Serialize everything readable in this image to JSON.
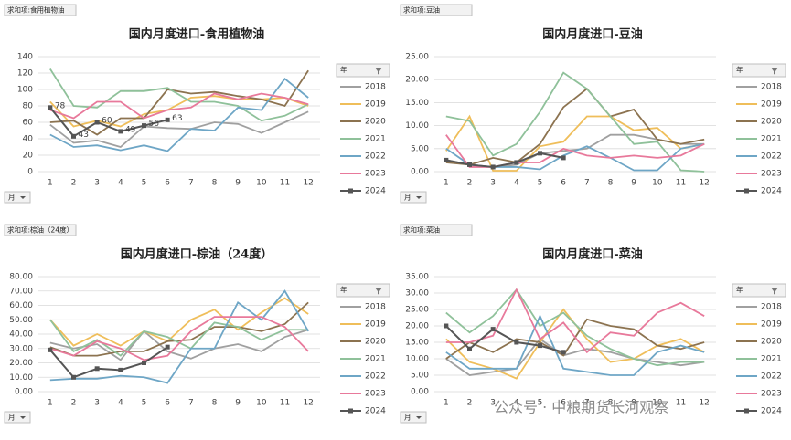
{
  "watermark": "公众号 · 中粮期货长河观察",
  "chart_data": [
    {
      "type": "line",
      "field_button": "求和项:食用植物油",
      "title": "国内月度进口-食用植物油",
      "legend_title": "年",
      "x_label": "月",
      "categories": [
        "1",
        "2",
        "3",
        "4",
        "5",
        "6",
        "7",
        "8",
        "9",
        "10",
        "11",
        "12"
      ],
      "ylim": [
        0,
        140
      ],
      "yticks": [
        0,
        20,
        40,
        60,
        80,
        100,
        120,
        140
      ],
      "series": [
        {
          "name": "2018",
          "color": "#a0a0a0",
          "values": [
            57,
            35,
            38,
            30,
            55,
            53,
            52,
            60,
            58,
            47,
            60,
            73
          ]
        },
        {
          "name": "2019",
          "color": "#efbe5a",
          "values": [
            85,
            55,
            62,
            55,
            70,
            75,
            90,
            92,
            88,
            88,
            90,
            80
          ]
        },
        {
          "name": "2020",
          "color": "#8c7350",
          "values": [
            60,
            62,
            45,
            65,
            65,
            100,
            95,
            97,
            92,
            88,
            80,
            123
          ]
        },
        {
          "name": "2021",
          "color": "#8fc19a",
          "values": [
            125,
            80,
            78,
            98,
            98,
            102,
            85,
            85,
            80,
            62,
            68,
            82
          ]
        },
        {
          "name": "2022",
          "color": "#6ea6c6",
          "values": [
            45,
            30,
            32,
            26,
            32,
            25,
            52,
            50,
            78,
            75,
            113,
            90
          ]
        },
        {
          "name": "2023",
          "color": "#e8799b",
          "values": [
            75,
            65,
            85,
            85,
            65,
            75,
            78,
            95,
            88,
            95,
            90,
            82
          ]
        },
        {
          "name": "2024",
          "color": "#555555",
          "marker": "square",
          "data_labels": true,
          "values": [
            78,
            43,
            60,
            49,
            56,
            63,
            null,
            null,
            null,
            null,
            null,
            null
          ]
        }
      ]
    },
    {
      "type": "line",
      "field_button": "求和项:豆油",
      "title": "国内月度进口-豆油",
      "legend_title": "年",
      "x_label": "月",
      "categories": [
        "1",
        "2",
        "3",
        "4",
        "5",
        "6",
        "7",
        "8",
        "9",
        "10",
        "11",
        "12"
      ],
      "ylim": [
        0,
        25
      ],
      "yticks": [
        {
          "value": 0,
          "label": "0.00"
        },
        {
          "value": 5,
          "label": "5.00"
        },
        {
          "value": 10,
          "label": "10.00"
        },
        {
          "value": 15,
          "label": "15.00"
        },
        {
          "value": 20,
          "label": "20.00"
        },
        {
          "value": 25,
          "label": "25.00"
        }
      ],
      "series": [
        {
          "name": "2018",
          "color": "#a0a0a0",
          "values": [
            2.5,
            1.5,
            1,
            1.5,
            4,
            4.5,
            5,
            8,
            8,
            7,
            6,
            6
          ]
        },
        {
          "name": "2019",
          "color": "#efbe5a",
          "values": [
            4.5,
            12,
            0.2,
            0.2,
            5.5,
            6.5,
            12,
            12,
            9,
            9.5,
            5,
            6
          ]
        },
        {
          "name": "2020",
          "color": "#8c7350",
          "values": [
            2,
            1.5,
            3,
            2,
            6,
            14,
            18,
            12,
            13.5,
            7,
            6,
            7
          ]
        },
        {
          "name": "2021",
          "color": "#8fc19a",
          "values": [
            12,
            11,
            3.5,
            6,
            13,
            21.5,
            18,
            12,
            6,
            6.5,
            0.3,
            0
          ]
        },
        {
          "name": "2022",
          "color": "#6ea6c6",
          "values": [
            5,
            1.5,
            1,
            1,
            0.5,
            3.5,
            5.5,
            3,
            0.3,
            0.3,
            5,
            6
          ]
        },
        {
          "name": "2023",
          "color": "#e8799b",
          "values": [
            8,
            1,
            1,
            2,
            2,
            5,
            3.5,
            3,
            3.5,
            3,
            3.5,
            6
          ]
        },
        {
          "name": "2024",
          "color": "#555555",
          "marker": "square",
          "values": [
            2.5,
            1.5,
            1,
            2,
            4,
            3,
            null,
            null,
            null,
            null,
            null,
            null
          ]
        }
      ]
    },
    {
      "type": "line",
      "field_button": "求和项:棕油（24度）",
      "title": "国内月度进口-棕油（24度）",
      "legend_title": "年",
      "x_label": "月",
      "categories": [
        "1",
        "2",
        "3",
        "4",
        "5",
        "6",
        "7",
        "8",
        "9",
        "10",
        "11",
        "12"
      ],
      "ylim": [
        0,
        80
      ],
      "yticks": [
        {
          "value": 0,
          "label": "0.00"
        },
        {
          "value": 10,
          "label": "10.00"
        },
        {
          "value": 20,
          "label": "20.00"
        },
        {
          "value": 30,
          "label": "30.00"
        },
        {
          "value": 40,
          "label": "40.00"
        },
        {
          "value": 50,
          "label": "50.00"
        },
        {
          "value": 60,
          "label": "60.00"
        },
        {
          "value": 70,
          "label": "70.00"
        },
        {
          "value": 80,
          "label": "80.00"
        }
      ],
      "series": [
        {
          "name": "2018",
          "color": "#a0a0a0",
          "values": [
            34,
            30,
            33,
            22,
            42,
            28,
            23,
            30,
            33,
            28,
            38,
            43
          ]
        },
        {
          "name": "2019",
          "color": "#efbe5a",
          "values": [
            50,
            32,
            40,
            32,
            42,
            35,
            50,
            57,
            43,
            55,
            65,
            54
          ]
        },
        {
          "name": "2020",
          "color": "#8c7350",
          "values": [
            31,
            25,
            25,
            28,
            28,
            35,
            36,
            45,
            45,
            42,
            47,
            62
          ]
        },
        {
          "name": "2021",
          "color": "#8fc19a",
          "values": [
            50,
            28,
            36,
            25,
            42,
            38,
            30,
            48,
            45,
            36,
            43,
            43
          ]
        },
        {
          "name": "2022",
          "color": "#6ea6c6",
          "values": [
            8,
            9,
            9,
            11,
            10,
            6,
            30,
            30,
            62,
            50,
            70,
            42
          ]
        },
        {
          "name": "2023",
          "color": "#e8799b",
          "values": [
            30,
            25,
            35,
            30,
            22,
            25,
            42,
            52,
            52,
            52,
            45,
            28
          ]
        },
        {
          "name": "2024",
          "color": "#555555",
          "marker": "square",
          "values": [
            29,
            10,
            16,
            15,
            20,
            31,
            null,
            null,
            null,
            null,
            null,
            null
          ]
        }
      ]
    },
    {
      "type": "line",
      "field_button": "求和项:菜油",
      "title": "国内月度进口-菜油",
      "legend_title": "年",
      "x_label": "月",
      "categories": [
        "1",
        "2",
        "3",
        "4",
        "5",
        "6",
        "7",
        "8",
        "9",
        "10",
        "11",
        "12"
      ],
      "ylim": [
        0,
        35
      ],
      "yticks": [
        {
          "value": 0,
          "label": "0.00"
        },
        {
          "value": 5,
          "label": "5.00"
        },
        {
          "value": 10,
          "label": "10.00"
        },
        {
          "value": 15,
          "label": "15.00"
        },
        {
          "value": 20,
          "label": "20.00"
        },
        {
          "value": 25,
          "label": "25.00"
        },
        {
          "value": 30,
          "label": "30.00"
        },
        {
          "value": 35,
          "label": "35.00"
        }
      ],
      "series": [
        {
          "name": "2018",
          "color": "#a0a0a0",
          "values": [
            10,
            5,
            6,
            7,
            16,
            11,
            13,
            12,
            10,
            9,
            8,
            9
          ]
        },
        {
          "name": "2019",
          "color": "#efbe5a",
          "values": [
            16,
            9,
            7,
            4,
            15,
            25,
            16,
            9,
            10,
            14,
            16,
            12
          ]
        },
        {
          "name": "2020",
          "color": "#8c7350",
          "values": [
            10,
            15,
            12,
            16,
            15,
            11,
            22,
            20,
            19,
            14,
            13,
            15
          ]
        },
        {
          "name": "2021",
          "color": "#8fc19a",
          "values": [
            24,
            18,
            23,
            31,
            20,
            24,
            17,
            13,
            10,
            8,
            9,
            9
          ]
        },
        {
          "name": "2022",
          "color": "#6ea6c6",
          "values": [
            12,
            7,
            7,
            7,
            23,
            7,
            6,
            5,
            5,
            12,
            14,
            12
          ]
        },
        {
          "name": "2023",
          "color": "#e8799b",
          "values": [
            15,
            15,
            17,
            31,
            16,
            21,
            12,
            18,
            17,
            24,
            27,
            23
          ]
        },
        {
          "name": "2024",
          "color": "#555555",
          "marker": "square",
          "values": [
            20,
            13,
            19,
            15,
            14,
            12,
            null,
            null,
            null,
            null,
            null,
            null
          ]
        }
      ]
    }
  ]
}
